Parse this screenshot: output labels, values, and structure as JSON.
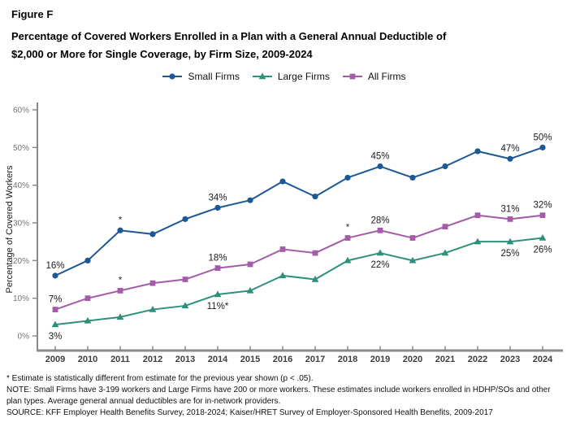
{
  "figure": {
    "label": "Figure F",
    "title_line1": "Percentage of Covered Workers Enrolled in a Plan with a General Annual Deductible of",
    "title_line2": "$2,000 or More for Single Coverage, by Firm Size, 2009-2024"
  },
  "colors": {
    "small_firms": "#1C5796",
    "large_firms": "#2E8F7B",
    "all_firms": "#A55CA8",
    "axis": "#8a8a8a"
  },
  "chart_data": {
    "type": "line",
    "title": "Percentage of Covered Workers Enrolled in a Plan with a General Annual Deductible of $2,000 or More for Single Coverage, by Firm Size, 2009-2024",
    "xlabel": "",
    "ylabel": "Percentage of Covered Workers",
    "ylim": [
      0,
      60
    ],
    "ytick_step": 10,
    "grid": false,
    "legend_position": "top",
    "x": [
      2009,
      2010,
      2011,
      2012,
      2013,
      2014,
      2015,
      2016,
      2017,
      2018,
      2019,
      2020,
      2021,
      2022,
      2023,
      2024
    ],
    "yticks": [
      {
        "value": 0,
        "label": "0%"
      },
      {
        "value": 10,
        "label": "10%"
      },
      {
        "value": 20,
        "label": "20%"
      },
      {
        "value": 30,
        "label": "30%"
      },
      {
        "value": 40,
        "label": "40%"
      },
      {
        "value": 50,
        "label": "50%"
      },
      {
        "value": 60,
        "label": "60%"
      }
    ],
    "series": [
      {
        "name": "Small Firms",
        "color": "#1C5796",
        "marker": "circle",
        "values": [
          16,
          20,
          28,
          27,
          31,
          34,
          36,
          41,
          37,
          42,
          45,
          42,
          45,
          49,
          47,
          50
        ],
        "point_labels": {
          "2009": {
            "text": "16%",
            "pos": "above"
          },
          "2014": {
            "text": "34%",
            "pos": "above"
          },
          "2019": {
            "text": "45%",
            "pos": "above"
          },
          "2023": {
            "text": "47%",
            "pos": "above"
          },
          "2024": {
            "text": "50%",
            "pos": "above"
          }
        },
        "asterisk_years": [
          2011
        ]
      },
      {
        "name": "Large Firms",
        "color": "#2E8F7B",
        "marker": "triangle",
        "values": [
          3,
          4,
          5,
          7,
          8,
          11,
          12,
          16,
          15,
          20,
          22,
          20,
          22,
          25,
          25,
          26
        ],
        "point_labels": {
          "2009": {
            "text": "3%",
            "pos": "below"
          },
          "2014": {
            "text": "11%*",
            "pos": "below"
          },
          "2019": {
            "text": "22%",
            "pos": "below"
          },
          "2023": {
            "text": "25%",
            "pos": "below"
          },
          "2024": {
            "text": "26%",
            "pos": "below"
          }
        },
        "asterisk_years": []
      },
      {
        "name": "All Firms",
        "color": "#A55CA8",
        "marker": "square",
        "values": [
          7,
          10,
          12,
          14,
          15,
          18,
          19,
          23,
          22,
          26,
          28,
          26,
          29,
          32,
          31,
          32
        ],
        "point_labels": {
          "2009": {
            "text": "7%",
            "pos": "above"
          },
          "2014": {
            "text": "18%",
            "pos": "above"
          },
          "2019": {
            "text": "28%",
            "pos": "above"
          },
          "2023": {
            "text": "31%",
            "pos": "above"
          },
          "2024": {
            "text": "32%",
            "pos": "above"
          }
        },
        "asterisk_years": [
          2011,
          2018
        ]
      }
    ]
  },
  "footnotes": {
    "asterisk": "* Estimate is statistically different from estimate for the previous year shown (p < .05).",
    "note": "NOTE: Small Firms have 3-199 workers and Large Firms have 200 or more workers. These estimates include workers enrolled in HDHP/SOs and other plan types. Average general annual deductibles are for in-network providers.",
    "source": "SOURCE: KFF Employer Health Benefits Survey, 2018-2024; Kaiser/HRET Survey of Employer-Sponsored Health Benefits, 2009-2017"
  }
}
